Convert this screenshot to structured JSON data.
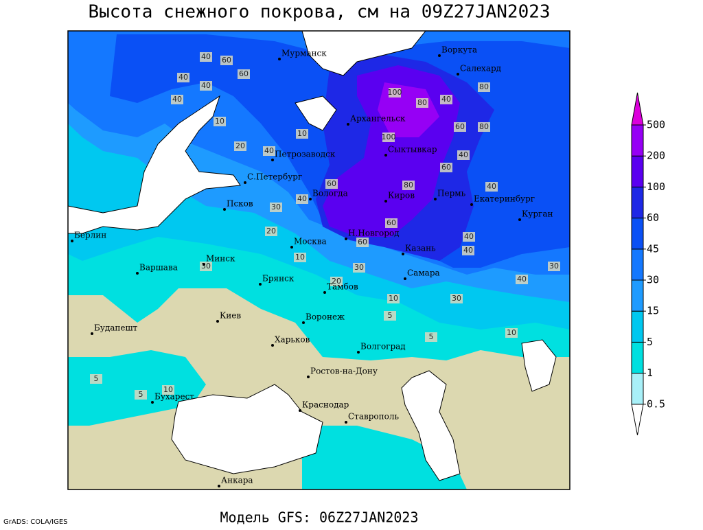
{
  "header": {
    "title": "Высота снежного покрова, см на 09Z27JAN2023"
  },
  "legend": {
    "levels": [
      0.5,
      1,
      5,
      15,
      30,
      45,
      60,
      100,
      200,
      500
    ],
    "colors": [
      "#ffffff",
      "#a8f0f8",
      "#00e0e0",
      "#00c8f0",
      "#1e9bff",
      "#1478ff",
      "#0a50f5",
      "#1e28e6",
      "#5a00f0",
      "#9600f5",
      "#dc00dc"
    ]
  },
  "cities": [
    "Мурманск",
    "Воркута",
    "Салехард",
    "Архангельск",
    "Сыктывкар",
    "Петрозаводск",
    "С.Петербург",
    "Вологда",
    "Киров",
    "Пермь",
    "Екатеринбург",
    "Псков",
    "Курган",
    "Берлин",
    "Н.Новгород",
    "Москва",
    "Казань",
    "Минск",
    "Варшава",
    "Самара",
    "Брянск",
    "Тамбов",
    "Киев",
    "Воронеж",
    "Будапешт",
    "Харьков",
    "Волгоград",
    "Ростов-на-Дону",
    "Бухарест",
    "Краснодар",
    "Ставрополь",
    "Анкара"
  ],
  "contour_labels": [
    40,
    60,
    40,
    60,
    40,
    40,
    10,
    20,
    40,
    100,
    80,
    40,
    80,
    60,
    100,
    80,
    40,
    60,
    80,
    40,
    60,
    40,
    30,
    40,
    30,
    20,
    60,
    40,
    60,
    10,
    30,
    30,
    20,
    10,
    5,
    10,
    5,
    10,
    5,
    5,
    10,
    40,
    30
  ],
  "footer": {
    "model": "Модель GFS: 06Z27JAN2023",
    "credit": "GrADS: COLA/IGES"
  }
}
